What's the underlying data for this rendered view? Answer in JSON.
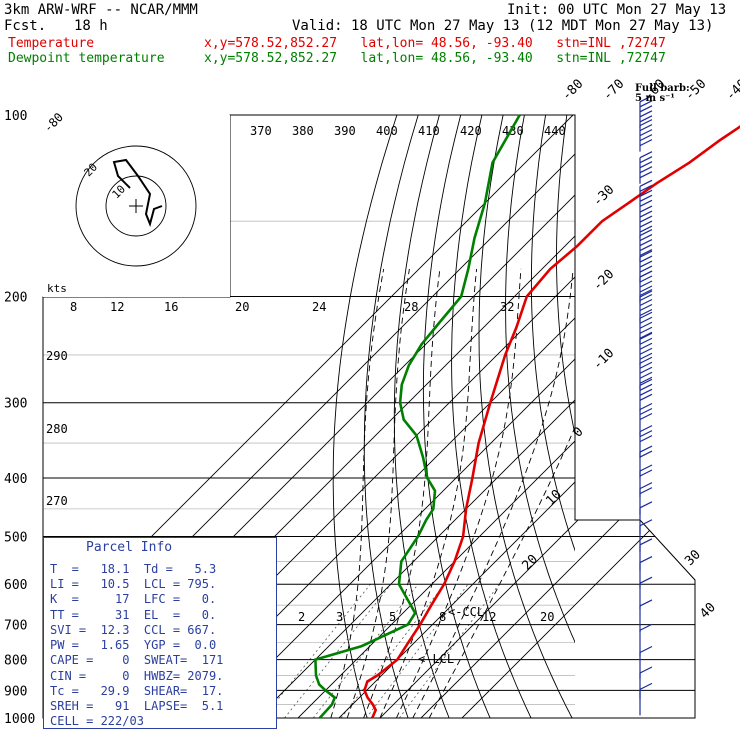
{
  "header": {
    "model": "3km ARW-WRF -- NCAR/MMM",
    "init": "Init: 00 UTC Mon 27 May 13",
    "fcst_label": "Fcst.",
    "fcst_value": "18 h",
    "valid": "Valid: 18 UTC Mon 27 May 13 (12 MDT Mon 27 May 13)",
    "temp_label": "Temperature",
    "temp_loc": "x,y=578.52,852.27   lat,lon= 48.56, -93.40   stn=INL ,72747",
    "dew_label": "Dewpoint temperature",
    "dew_loc": "x,y=578.52,852.27   lat,lon= 48.56, -93.40   stn=INL ,72747"
  },
  "barb_header": {
    "line1": "Full barb:",
    "line2": "5 m s⁻¹"
  },
  "parcel": {
    "title": "Parcel Info",
    "rows": [
      "T  =   18.1  Td =   5.3",
      "LI =   10.5  LCL = 795.",
      "K  =     17  LFC =   0.",
      "TT =     31  EL  =   0.",
      "SVI =  12.3  CCL = 667.",
      "PW =   1.65  YGP =  0.0",
      "CAPE =    0  SWEAT=  171",
      "CIN =     0  HWBZ= 2079.",
      "Tc =   29.9  SHEAR=  17.",
      "SREH =   91  LAPSE=  5.1",
      "CELL = 222/03"
    ]
  },
  "colors": {
    "temperature": "#e00000",
    "dewpoint": "#008000",
    "parcel": "#2b3fa0",
    "barbs": "#1a2a99"
  },
  "chart_data": {
    "type": "line",
    "diagram": "skew-T log-P",
    "y_axis": {
      "scale": "log",
      "range": [
        1000,
        100
      ],
      "ticks": [
        100,
        200,
        300,
        400,
        500,
        600,
        700,
        800,
        900,
        1000
      ]
    },
    "isotherms": [
      -80,
      -70,
      -60,
      -50,
      -40,
      -30,
      -20,
      -10,
      0,
      10,
      20,
      30,
      40
    ],
    "isotherm_labels": [
      {
        "t": -80,
        "p": 100,
        "text": "-80"
      },
      {
        "t": -70,
        "p": 100,
        "text": "-70"
      },
      {
        "t": -60,
        "p": 100,
        "text": "-60"
      },
      {
        "t": -50,
        "p": 100,
        "text": "-50"
      },
      {
        "t": -40,
        "p": 100,
        "text": "-40"
      },
      {
        "t": -30,
        "p": 142,
        "text": "-30"
      },
      {
        "t": -20,
        "p": 196,
        "text": "-20"
      },
      {
        "t": -10,
        "p": 265,
        "text": "-10"
      },
      {
        "t": 0,
        "p": 343,
        "text": "0"
      },
      {
        "t": 10,
        "p": 445,
        "text": "10"
      },
      {
        "t": 20,
        "p": 570,
        "text": "20"
      },
      {
        "t": 30,
        "p": 560,
        "text": "30"
      },
      {
        "t": 40,
        "p": 685,
        "text": "40"
      }
    ],
    "theta_lines": [
      290,
      300,
      310,
      320,
      330,
      340,
      350,
      360,
      370,
      380,
      390,
      400,
      410,
      420,
      430,
      440
    ],
    "theta_labels_top": [
      "370",
      "380",
      "390",
      "400",
      "410",
      "420",
      "430",
      "440"
    ],
    "theta_labels_left": [
      "290",
      "280",
      "270"
    ],
    "moist_labels_left": [
      "8"
    ],
    "mixing_ratio_labels": [
      "2",
      "3",
      "5",
      "8",
      "12",
      "20"
    ],
    "hodograph": {
      "units": "kts",
      "rings": [
        8,
        12,
        16,
        20,
        24,
        28,
        32
      ],
      "ring_labels": [
        "8",
        "12",
        "16",
        "20",
        "24",
        "28",
        "32"
      ],
      "inner_labels": [
        "20",
        "10"
      ]
    },
    "annotations": {
      "ccl": "<-CCL",
      "lcl": "<-LCL"
    },
    "series": [
      {
        "name": "Temperature",
        "points": [
          [
            1000,
            18.1
          ],
          [
            970,
            17
          ],
          [
            950,
            15
          ],
          [
            925,
            12
          ],
          [
            900,
            9.5
          ],
          [
            870,
            8
          ],
          [
            850,
            9
          ],
          [
            800,
            10
          ],
          [
            750,
            8.5
          ],
          [
            700,
            7
          ],
          [
            650,
            5
          ],
          [
            600,
            3
          ],
          [
            550,
            0
          ],
          [
            500,
            -4
          ],
          [
            450,
            -10
          ],
          [
            400,
            -16
          ],
          [
            350,
            -23
          ],
          [
            300,
            -30
          ],
          [
            250,
            -38
          ],
          [
            225,
            -42
          ],
          [
            200,
            -47
          ],
          [
            180,
            -48
          ],
          [
            165,
            -47
          ],
          [
            150,
            -47
          ],
          [
            140,
            -45
          ],
          [
            130,
            -43
          ],
          [
            120,
            -40
          ],
          [
            110,
            -38
          ],
          [
            100,
            -35
          ]
        ]
      },
      {
        "name": "Dewpoint temperature",
        "points": [
          [
            1000,
            5.3
          ],
          [
            950,
            5
          ],
          [
            925,
            4
          ],
          [
            900,
            0
          ],
          [
            880,
            -3
          ],
          [
            850,
            -6
          ],
          [
            800,
            -10
          ],
          [
            760,
            -2
          ],
          [
            700,
            4
          ],
          [
            670,
            3
          ],
          [
            650,
            0
          ],
          [
            600,
            -8
          ],
          [
            550,
            -13
          ],
          [
            500,
            -15
          ],
          [
            470,
            -17
          ],
          [
            450,
            -18
          ],
          [
            420,
            -22
          ],
          [
            400,
            -27
          ],
          [
            370,
            -33
          ],
          [
            340,
            -40
          ],
          [
            320,
            -47
          ],
          [
            300,
            -52
          ],
          [
            280,
            -56
          ],
          [
            260,
            -59
          ],
          [
            240,
            -61
          ],
          [
            220,
            -62
          ],
          [
            200,
            -63
          ],
          [
            180,
            -68
          ],
          [
            160,
            -74
          ],
          [
            140,
            -80
          ],
          [
            120,
            -88
          ],
          [
            100,
            -93
          ]
        ]
      }
    ],
    "wind_barbs": [
      {
        "p": 105,
        "kts": 55
      },
      {
        "p": 115,
        "kts": 55
      },
      {
        "p": 130,
        "kts": 60
      },
      {
        "p": 145,
        "kts": 60
      },
      {
        "p": 160,
        "kts": 60
      },
      {
        "p": 175,
        "kts": 55
      },
      {
        "p": 190,
        "kts": 55
      },
      {
        "p": 205,
        "kts": 55
      },
      {
        "p": 220,
        "kts": 55
      },
      {
        "p": 240,
        "kts": 55
      },
      {
        "p": 260,
        "kts": 50
      },
      {
        "p": 285,
        "kts": 50
      },
      {
        "p": 310,
        "kts": 40
      },
      {
        "p": 340,
        "kts": 30
      },
      {
        "p": 370,
        "kts": 30
      },
      {
        "p": 400,
        "kts": 25
      },
      {
        "p": 430,
        "kts": 20
      },
      {
        "p": 460,
        "kts": 20
      },
      {
        "p": 495,
        "kts": 15
      },
      {
        "p": 530,
        "kts": 15
      },
      {
        "p": 570,
        "kts": 15
      },
      {
        "p": 610,
        "kts": 15
      },
      {
        "p": 660,
        "kts": 10
      },
      {
        "p": 720,
        "kts": 10
      },
      {
        "p": 790,
        "kts": 10
      },
      {
        "p": 860,
        "kts": 10
      },
      {
        "p": 930,
        "kts": 10
      },
      {
        "p": 990,
        "kts": 10
      }
    ]
  }
}
